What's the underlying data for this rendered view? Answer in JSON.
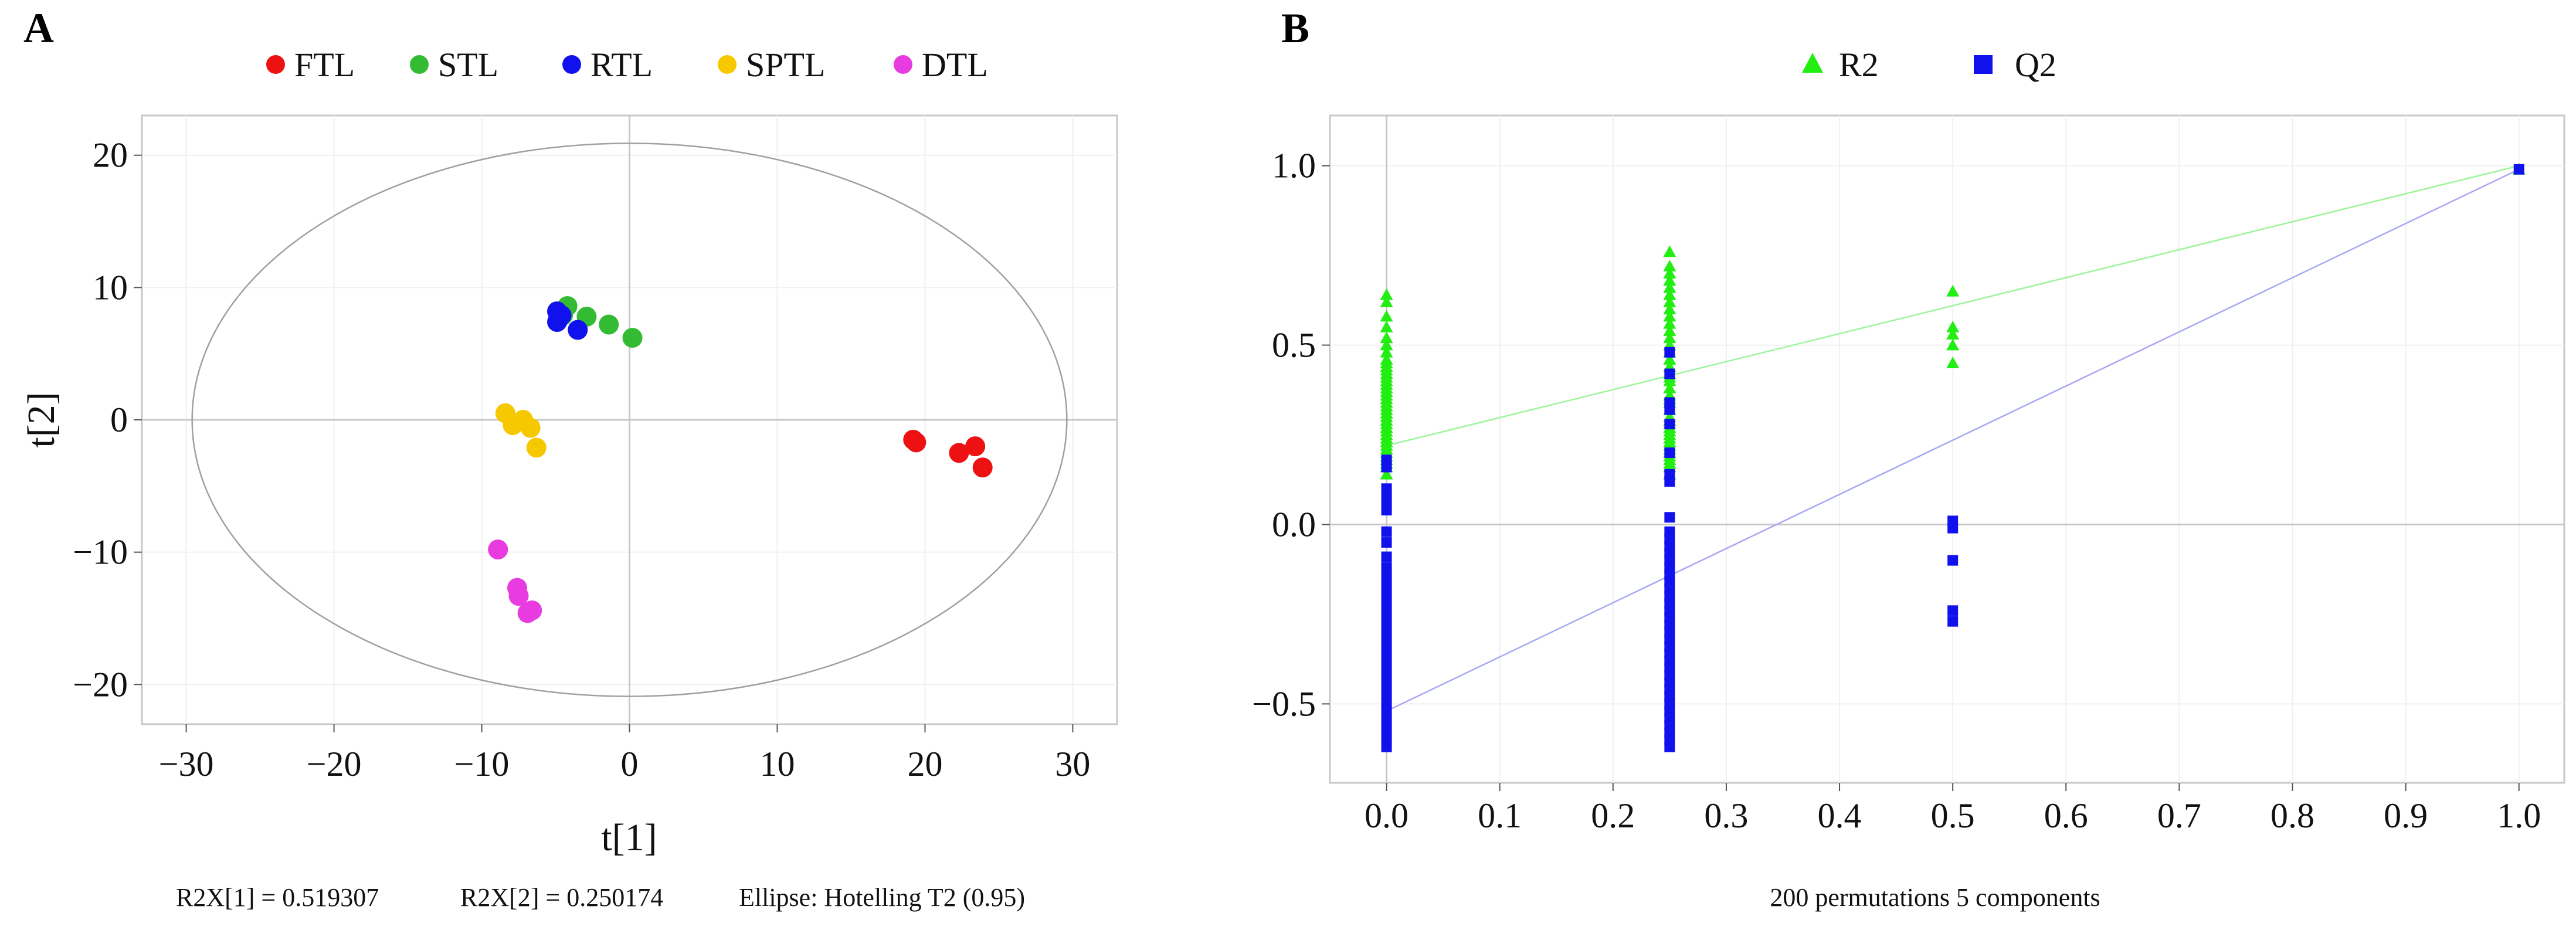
{
  "chart_data": [
    {
      "panel": "A",
      "type": "scatter",
      "xlabel": "t[1]",
      "ylabel": "t[2]",
      "xlim": [
        -33,
        33
      ],
      "ylim": [
        -23,
        23
      ],
      "xticks": [
        -30,
        -20,
        -10,
        0,
        10,
        20,
        30
      ],
      "yticks": [
        20,
        10,
        0,
        -10,
        -20
      ],
      "xtick_labels": [
        "−30",
        "−20",
        "−10",
        "0",
        "10",
        "20",
        "30"
      ],
      "ytick_labels": [
        "20",
        "10",
        "0",
        "−10",
        "−20"
      ],
      "ellipse": {
        "center": [
          0,
          0
        ],
        "rx": 29.6,
        "ry": 20.9
      },
      "legend": {
        "position": "top"
      },
      "series": [
        {
          "name": "FTL",
          "color": "#ee1111",
          "points": [
            [
              19.2,
              -1.5
            ],
            [
              19.4,
              -1.7
            ],
            [
              22.3,
              -2.5
            ],
            [
              23.4,
              -2.0
            ],
            [
              23.9,
              -3.6
            ]
          ]
        },
        {
          "name": "STL",
          "color": "#33bb33",
          "points": [
            [
              -4.2,
              8.6
            ],
            [
              -2.9,
              7.8
            ],
            [
              -1.4,
              7.2
            ],
            [
              0.2,
              6.2
            ],
            [
              -4.5,
              7.9
            ]
          ]
        },
        {
          "name": "RTL",
          "color": "#1111ee",
          "points": [
            [
              -4.9,
              8.2
            ],
            [
              -4.8,
              7.6
            ],
            [
              -4.6,
              7.9
            ],
            [
              -3.5,
              6.8
            ],
            [
              -4.9,
              7.4
            ]
          ]
        },
        {
          "name": "SPTL",
          "color": "#f5c800",
          "points": [
            [
              -8.4,
              0.5
            ],
            [
              -7.9,
              -0.4
            ],
            [
              -7.2,
              0.0
            ],
            [
              -6.7,
              -0.6
            ],
            [
              -6.3,
              -2.1
            ]
          ]
        },
        {
          "name": "DTL",
          "color": "#e83ce0",
          "points": [
            [
              -8.9,
              -9.8
            ],
            [
              -7.6,
              -12.7
            ],
            [
              -7.5,
              -13.3
            ],
            [
              -6.9,
              -14.6
            ],
            [
              -6.6,
              -14.4
            ]
          ]
        }
      ],
      "footer": [
        "R2X[1] = 0.519307",
        "R2X[2] = 0.250174",
        "Ellipse: Hotelling T2 (0.95)"
      ]
    },
    {
      "panel": "B",
      "type": "scatter",
      "xlabel": "200 permutations 5 components",
      "ylabel": "",
      "xlim": [
        -0.05,
        1.04
      ],
      "ylim": [
        -0.72,
        1.14
      ],
      "xticks": [
        0.0,
        0.1,
        0.2,
        0.3,
        0.4,
        0.5,
        0.6,
        0.7,
        0.8,
        0.9,
        1.0
      ],
      "yticks": [
        1.0,
        0.5,
        0.0,
        -0.5
      ],
      "xtick_labels": [
        "0.0",
        "0.1",
        "0.2",
        "0.3",
        "0.4",
        "0.5",
        "0.6",
        "0.7",
        "0.8",
        "0.9",
        "1.0"
      ],
      "ytick_labels": [
        "1.0",
        "0.5",
        "0.0",
        "−0.5"
      ],
      "legend": {
        "position": "top"
      },
      "series": [
        {
          "name": "R2",
          "color": "#22ee11",
          "marker": "triangle",
          "points": [
            [
              0,
              0.64
            ],
            [
              0,
              0.62
            ],
            [
              0,
              0.58
            ],
            [
              0,
              0.55
            ],
            [
              0,
              0.52
            ],
            [
              0,
              0.5
            ],
            [
              0,
              0.48
            ],
            [
              0,
              0.46
            ],
            [
              0,
              0.45
            ],
            [
              0,
              0.44
            ],
            [
              0,
              0.43
            ],
            [
              0,
              0.42
            ],
            [
              0,
              0.41
            ],
            [
              0,
              0.4
            ],
            [
              0,
              0.39
            ],
            [
              0,
              0.38
            ],
            [
              0,
              0.37
            ],
            [
              0,
              0.36
            ],
            [
              0,
              0.35
            ],
            [
              0,
              0.34
            ],
            [
              0,
              0.33
            ],
            [
              0,
              0.32
            ],
            [
              0,
              0.31
            ],
            [
              0,
              0.3
            ],
            [
              0,
              0.29
            ],
            [
              0,
              0.28
            ],
            [
              0,
              0.27
            ],
            [
              0,
              0.26
            ],
            [
              0,
              0.25
            ],
            [
              0,
              0.24
            ],
            [
              0,
              0.23
            ],
            [
              0,
              0.22
            ],
            [
              0,
              0.21
            ],
            [
              0,
              0.2
            ],
            [
              0,
              0.19
            ],
            [
              0,
              0.18
            ],
            [
              0,
              0.17
            ],
            [
              0,
              0.16
            ],
            [
              0,
              0.14
            ],
            [
              0.25,
              0.76
            ],
            [
              0.25,
              0.72
            ],
            [
              0.25,
              0.7
            ],
            [
              0.25,
              0.68
            ],
            [
              0.25,
              0.66
            ],
            [
              0.25,
              0.64
            ],
            [
              0.25,
              0.62
            ],
            [
              0.25,
              0.6
            ],
            [
              0.25,
              0.58
            ],
            [
              0.25,
              0.56
            ],
            [
              0.25,
              0.54
            ],
            [
              0.25,
              0.52
            ],
            [
              0.25,
              0.5
            ],
            [
              0.25,
              0.48
            ],
            [
              0.25,
              0.46
            ],
            [
              0.25,
              0.44
            ],
            [
              0.25,
              0.42
            ],
            [
              0.25,
              0.41
            ],
            [
              0.25,
              0.4
            ],
            [
              0.25,
              0.38
            ],
            [
              0.25,
              0.36
            ],
            [
              0.25,
              0.35
            ],
            [
              0.25,
              0.34
            ],
            [
              0.25,
              0.32
            ],
            [
              0.25,
              0.3
            ],
            [
              0.25,
              0.29
            ],
            [
              0.25,
              0.28
            ],
            [
              0.25,
              0.27
            ],
            [
              0.25,
              0.26
            ],
            [
              0.25,
              0.25
            ],
            [
              0.25,
              0.24
            ],
            [
              0.25,
              0.23
            ],
            [
              0.25,
              0.22
            ],
            [
              0.25,
              0.21
            ],
            [
              0.25,
              0.2
            ],
            [
              0.25,
              0.19
            ],
            [
              0.25,
              0.18
            ],
            [
              0.25,
              0.17
            ],
            [
              0.25,
              0.16
            ],
            [
              0.25,
              0.14
            ],
            [
              0.5,
              0.65
            ],
            [
              0.5,
              0.55
            ],
            [
              0.5,
              0.53
            ],
            [
              0.5,
              0.5
            ],
            [
              0.5,
              0.45
            ],
            [
              1.0,
              0.99
            ]
          ],
          "regression": {
            "intercept": 0.22,
            "at_x1": 1.0
          }
        },
        {
          "name": "Q2",
          "color": "#1111ee",
          "marker": "square",
          "points": [
            [
              0,
              0.18
            ],
            [
              0,
              0.16
            ],
            [
              0,
              0.1
            ],
            [
              0,
              0.08
            ],
            [
              0,
              0.06
            ],
            [
              0,
              0.04
            ],
            [
              0,
              -0.02
            ],
            [
              0,
              -0.05
            ],
            [
              0,
              -0.09
            ],
            [
              0,
              -0.12
            ],
            [
              0,
              -0.14
            ],
            [
              0,
              -0.16
            ],
            [
              0,
              -0.18
            ],
            [
              0,
              -0.2
            ],
            [
              0,
              -0.22
            ],
            [
              0,
              -0.24
            ],
            [
              0,
              -0.26
            ],
            [
              0,
              -0.28
            ],
            [
              0,
              -0.3
            ],
            [
              0,
              -0.32
            ],
            [
              0,
              -0.34
            ],
            [
              0,
              -0.36
            ],
            [
              0,
              -0.38
            ],
            [
              0,
              -0.4
            ],
            [
              0,
              -0.42
            ],
            [
              0,
              -0.44
            ],
            [
              0,
              -0.46
            ],
            [
              0,
              -0.48
            ],
            [
              0,
              -0.5
            ],
            [
              0,
              -0.52
            ],
            [
              0,
              -0.54
            ],
            [
              0,
              -0.56
            ],
            [
              0,
              -0.58
            ],
            [
              0,
              -0.6
            ],
            [
              0,
              -0.62
            ],
            [
              0.25,
              0.48
            ],
            [
              0.25,
              0.42
            ],
            [
              0.25,
              0.34
            ],
            [
              0.25,
              0.32
            ],
            [
              0.25,
              0.28
            ],
            [
              0.25,
              0.2
            ],
            [
              0.25,
              0.14
            ],
            [
              0.25,
              0.12
            ],
            [
              0.25,
              0.02
            ],
            [
              0.25,
              -0.02
            ],
            [
              0.25,
              -0.04
            ],
            [
              0.25,
              -0.06
            ],
            [
              0.25,
              -0.08
            ],
            [
              0.25,
              -0.1
            ],
            [
              0.25,
              -0.12
            ],
            [
              0.25,
              -0.14
            ],
            [
              0.25,
              -0.16
            ],
            [
              0.25,
              -0.18
            ],
            [
              0.25,
              -0.2
            ],
            [
              0.25,
              -0.22
            ],
            [
              0.25,
              -0.24
            ],
            [
              0.25,
              -0.26
            ],
            [
              0.25,
              -0.28
            ],
            [
              0.25,
              -0.3
            ],
            [
              0.25,
              -0.32
            ],
            [
              0.25,
              -0.34
            ],
            [
              0.25,
              -0.36
            ],
            [
              0.25,
              -0.38
            ],
            [
              0.25,
              -0.4
            ],
            [
              0.25,
              -0.42
            ],
            [
              0.25,
              -0.44
            ],
            [
              0.25,
              -0.46
            ],
            [
              0.25,
              -0.48
            ],
            [
              0.25,
              -0.5
            ],
            [
              0.25,
              -0.52
            ],
            [
              0.25,
              -0.54
            ],
            [
              0.25,
              -0.56
            ],
            [
              0.25,
              -0.58
            ],
            [
              0.25,
              -0.6
            ],
            [
              0.25,
              -0.62
            ],
            [
              0.5,
              0.01
            ],
            [
              0.5,
              -0.01
            ],
            [
              0.5,
              -0.1
            ],
            [
              0.5,
              -0.24
            ],
            [
              0.5,
              -0.27
            ],
            [
              1.0,
              0.99
            ]
          ],
          "regression": {
            "intercept": -0.52,
            "at_x1": 0.99
          }
        }
      ]
    }
  ]
}
